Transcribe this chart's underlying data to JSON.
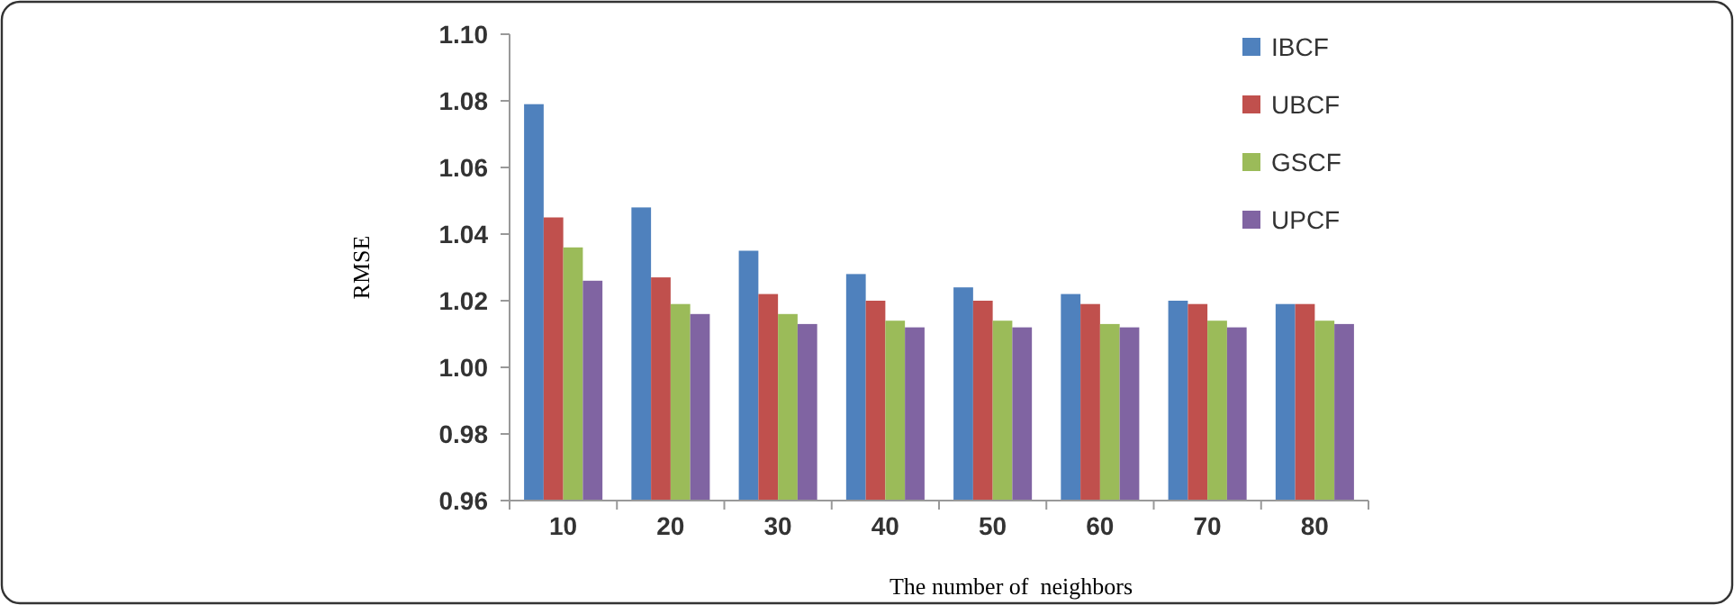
{
  "chart_data": {
    "type": "bar",
    "xlabel": "The number of  neighbors",
    "ylabel": "RMSE",
    "categories": [
      "10",
      "20",
      "30",
      "40",
      "50",
      "60",
      "70",
      "80"
    ],
    "series": [
      {
        "name": "IBCF",
        "color": "#4f81bd",
        "values": [
          1.079,
          1.048,
          1.035,
          1.028,
          1.024,
          1.022,
          1.02,
          1.019
        ]
      },
      {
        "name": "UBCF",
        "color": "#c0504d",
        "values": [
          1.045,
          1.027,
          1.022,
          1.02,
          1.02,
          1.019,
          1.019,
          1.019
        ]
      },
      {
        "name": "GSCF",
        "color": "#9bbb59",
        "values": [
          1.036,
          1.019,
          1.016,
          1.014,
          1.014,
          1.013,
          1.014,
          1.014
        ]
      },
      {
        "name": "UPCF",
        "color": "#8064a2",
        "values": [
          1.026,
          1.016,
          1.013,
          1.012,
          1.012,
          1.012,
          1.012,
          1.013
        ]
      }
    ],
    "ylim": [
      0.96,
      1.1
    ],
    "yticks": [
      {
        "value": 0.96,
        "label": "0.96"
      },
      {
        "value": 0.98,
        "label": "0.98"
      },
      {
        "value": 1.0,
        "label": "1.00"
      },
      {
        "value": 1.02,
        "label": "1.02"
      },
      {
        "value": 1.04,
        "label": "1.04"
      },
      {
        "value": 1.06,
        "label": "1.06"
      },
      {
        "value": 1.08,
        "label": "1.08"
      },
      {
        "value": 1.1,
        "label": "1.10"
      }
    ],
    "grid": false,
    "legend": "top right"
  }
}
